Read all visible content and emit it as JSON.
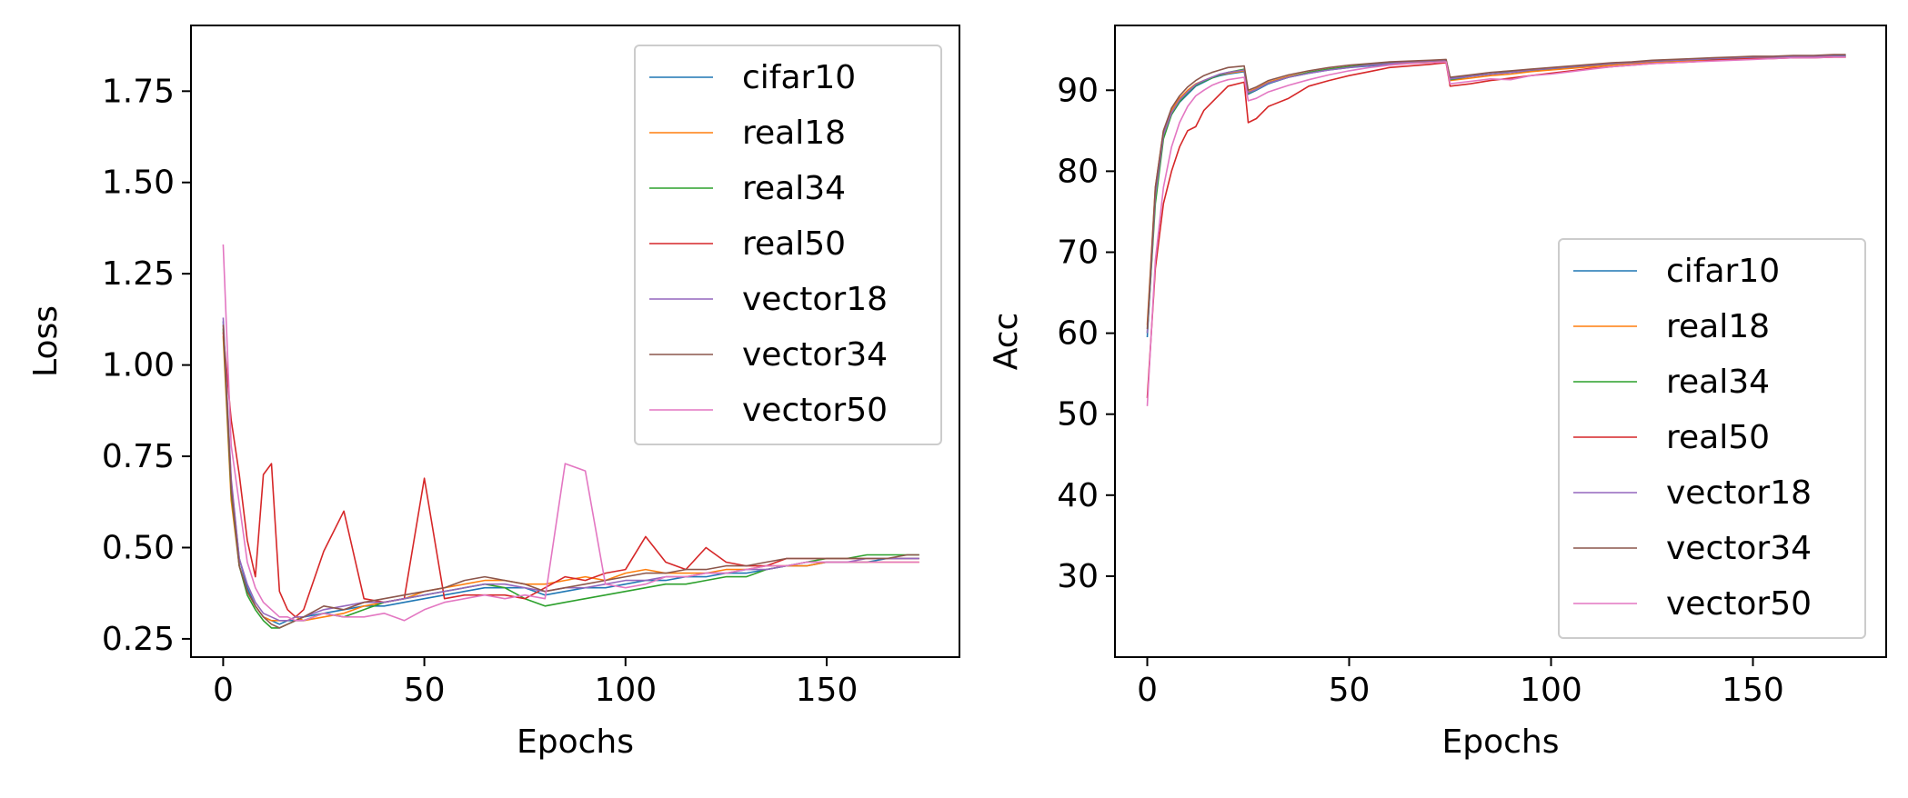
{
  "chart_data": [
    {
      "type": "line",
      "title": "",
      "xlabel": "Epochs",
      "ylabel": "Loss",
      "xlim": [
        -8,
        183
      ],
      "ylim": [
        0.2,
        1.93
      ],
      "xticks": [
        0,
        50,
        100,
        150
      ],
      "yticks": [
        0.25,
        0.5,
        0.75,
        1.0,
        1.25,
        1.5,
        1.75
      ],
      "ytick_labels": [
        "0.25",
        "0.50",
        "0.75",
        "1.00",
        "1.25",
        "1.50",
        "1.75"
      ],
      "legend": "upper-right",
      "grid": false,
      "x": [
        0,
        2,
        4,
        6,
        8,
        10,
        12,
        14,
        16,
        18,
        20,
        25,
        30,
        35,
        40,
        45,
        50,
        55,
        60,
        65,
        70,
        75,
        80,
        85,
        90,
        95,
        100,
        105,
        110,
        115,
        120,
        125,
        130,
        135,
        140,
        145,
        150,
        155,
        160,
        165,
        170,
        173
      ],
      "series": [
        {
          "name": "cifar10",
          "color": "#1f77b4",
          "values": [
            1.12,
            0.68,
            0.47,
            0.39,
            0.34,
            0.31,
            0.3,
            0.29,
            0.3,
            0.3,
            0.31,
            0.32,
            0.33,
            0.34,
            0.34,
            0.35,
            0.36,
            0.37,
            0.38,
            0.39,
            0.39,
            0.39,
            0.37,
            0.38,
            0.39,
            0.39,
            0.4,
            0.41,
            0.41,
            0.42,
            0.42,
            0.43,
            0.43,
            0.44,
            0.45,
            0.45,
            0.46,
            0.46,
            0.46,
            0.47,
            0.47,
            0.47
          ]
        },
        {
          "name": "real18",
          "color": "#ff7f0e",
          "values": [
            1.08,
            0.63,
            0.45,
            0.38,
            0.34,
            0.31,
            0.3,
            0.3,
            0.3,
            0.31,
            0.3,
            0.31,
            0.32,
            0.34,
            0.35,
            0.36,
            0.38,
            0.39,
            0.4,
            0.41,
            0.41,
            0.4,
            0.4,
            0.41,
            0.42,
            0.41,
            0.43,
            0.44,
            0.43,
            0.43,
            0.43,
            0.44,
            0.44,
            0.45,
            0.45,
            0.45,
            0.46,
            0.46,
            0.46,
            0.46,
            0.46,
            0.46
          ]
        },
        {
          "name": "real34",
          "color": "#2ca02c",
          "values": [
            1.1,
            0.65,
            0.45,
            0.37,
            0.33,
            0.3,
            0.28,
            0.28,
            0.29,
            0.3,
            0.3,
            0.32,
            0.31,
            0.33,
            0.35,
            0.36,
            0.37,
            0.38,
            0.39,
            0.4,
            0.39,
            0.36,
            0.34,
            0.35,
            0.36,
            0.37,
            0.38,
            0.39,
            0.4,
            0.4,
            0.41,
            0.42,
            0.42,
            0.44,
            0.45,
            0.46,
            0.47,
            0.47,
            0.48,
            0.48,
            0.48,
            0.48
          ]
        },
        {
          "name": "real50",
          "color": "#d62728",
          "values": [
            1.09,
            0.85,
            0.7,
            0.52,
            0.42,
            0.7,
            0.73,
            0.38,
            0.33,
            0.31,
            0.33,
            0.49,
            0.6,
            0.36,
            0.35,
            0.36,
            0.69,
            0.36,
            0.37,
            0.37,
            0.37,
            0.36,
            0.39,
            0.42,
            0.41,
            0.43,
            0.44,
            0.53,
            0.46,
            0.44,
            0.5,
            0.46,
            0.45,
            0.45,
            0.47,
            0.47,
            0.47,
            0.47,
            0.47,
            0.47,
            0.47,
            0.47
          ]
        },
        {
          "name": "vector18",
          "color": "#9467bd",
          "values": [
            1.13,
            0.69,
            0.47,
            0.4,
            0.35,
            0.32,
            0.31,
            0.3,
            0.3,
            0.31,
            0.31,
            0.33,
            0.34,
            0.35,
            0.35,
            0.36,
            0.37,
            0.38,
            0.39,
            0.4,
            0.4,
            0.39,
            0.38,
            0.39,
            0.39,
            0.4,
            0.41,
            0.41,
            0.42,
            0.42,
            0.43,
            0.43,
            0.44,
            0.44,
            0.45,
            0.46,
            0.46,
            0.46,
            0.47,
            0.47,
            0.47,
            0.47
          ]
        },
        {
          "name": "vector34",
          "color": "#8c564b",
          "values": [
            1.11,
            0.66,
            0.45,
            0.38,
            0.34,
            0.31,
            0.29,
            0.28,
            0.29,
            0.3,
            0.31,
            0.34,
            0.33,
            0.35,
            0.36,
            0.37,
            0.38,
            0.39,
            0.41,
            0.42,
            0.41,
            0.4,
            0.38,
            0.39,
            0.4,
            0.41,
            0.42,
            0.43,
            0.43,
            0.44,
            0.44,
            0.45,
            0.45,
            0.46,
            0.47,
            0.47,
            0.47,
            0.47,
            0.47,
            0.47,
            0.48,
            0.48
          ]
        },
        {
          "name": "vector50",
          "color": "#e377c2",
          "values": [
            1.33,
            0.78,
            0.62,
            0.46,
            0.39,
            0.35,
            0.33,
            0.31,
            0.31,
            0.3,
            0.3,
            0.32,
            0.31,
            0.31,
            0.32,
            0.3,
            0.33,
            0.35,
            0.36,
            0.37,
            0.36,
            0.37,
            0.36,
            0.73,
            0.71,
            0.4,
            0.39,
            0.4,
            0.42,
            0.42,
            0.43,
            0.43,
            0.44,
            0.45,
            0.45,
            0.46,
            0.46,
            0.46,
            0.46,
            0.46,
            0.46,
            0.46
          ]
        }
      ]
    },
    {
      "type": "line",
      "title": "",
      "xlabel": "Epochs",
      "ylabel": "Acc",
      "xlim": [
        -8,
        183
      ],
      "ylim": [
        20,
        98
      ],
      "xticks": [
        0,
        50,
        100,
        150
      ],
      "yticks": [
        30,
        40,
        50,
        60,
        70,
        80,
        90
      ],
      "ytick_labels": [
        "30",
        "40",
        "50",
        "60",
        "70",
        "80",
        "90"
      ],
      "legend": "lower-right",
      "grid": false,
      "x": [
        0,
        2,
        4,
        6,
        8,
        10,
        12,
        14,
        16,
        18,
        20,
        24,
        25,
        27,
        30,
        35,
        40,
        45,
        50,
        55,
        60,
        65,
        70,
        74,
        75,
        80,
        85,
        90,
        95,
        100,
        105,
        110,
        115,
        120,
        125,
        130,
        135,
        140,
        145,
        150,
        155,
        160,
        165,
        170,
        173
      ],
      "series": [
        {
          "name": "cifar10",
          "color": "#1f77b4",
          "values": [
            59.5,
            77,
            84.5,
            87,
            88.5,
            89.5,
            90.5,
            91,
            91.5,
            91.8,
            92,
            92.3,
            89.5,
            90,
            90.8,
            91.6,
            92.1,
            92.5,
            92.8,
            93,
            93.2,
            93.4,
            93.5,
            93.6,
            91.5,
            91.8,
            92,
            92.2,
            92.4,
            92.6,
            92.8,
            93,
            93.2,
            93.4,
            93.5,
            93.6,
            93.7,
            93.8,
            93.9,
            94,
            94,
            94.1,
            94.1,
            94.2,
            94.2
          ]
        },
        {
          "name": "real18",
          "color": "#ff7f0e",
          "values": [
            61,
            78,
            85,
            87.5,
            89,
            90,
            90.8,
            91.2,
            91.6,
            91.9,
            92.1,
            92.4,
            89.8,
            90.2,
            91,
            91.7,
            92.2,
            92.6,
            92.9,
            93.1,
            93.3,
            93.4,
            93.5,
            93.6,
            91.2,
            91.5,
            91.8,
            92,
            92.3,
            92.5,
            92.7,
            92.9,
            93.1,
            93.3,
            93.4,
            93.5,
            93.6,
            93.7,
            93.8,
            93.9,
            94,
            94,
            94.1,
            94.1,
            94.1
          ]
        },
        {
          "name": "real34",
          "color": "#2ca02c",
          "values": [
            60,
            76,
            84,
            87,
            88.6,
            89.7,
            90.6,
            91.1,
            91.5,
            91.9,
            92.2,
            92.6,
            89.6,
            90.1,
            90.9,
            91.6,
            92.2,
            92.6,
            92.9,
            93.2,
            93.4,
            93.5,
            93.6,
            93.7,
            91.3,
            91.7,
            92,
            92.3,
            92.5,
            92.7,
            92.9,
            93.1,
            93.3,
            93.4,
            93.6,
            93.7,
            93.8,
            93.9,
            94,
            94.1,
            94.1,
            94.2,
            94.2,
            94.3,
            94.3
          ]
        },
        {
          "name": "real50",
          "color": "#d62728",
          "values": [
            52,
            68,
            76,
            80,
            83,
            85,
            85.5,
            87.5,
            88.5,
            89.5,
            90.5,
            91,
            86,
            86.5,
            88,
            89,
            90.5,
            91.2,
            91.8,
            92.3,
            92.8,
            93,
            93.2,
            93.4,
            90.5,
            90.8,
            91.2,
            91.5,
            91.8,
            92.1,
            92.4,
            92.7,
            92.9,
            93.1,
            93.3,
            93.4,
            93.5,
            93.7,
            93.8,
            93.9,
            93.9,
            94,
            94,
            94.1,
            94.1
          ]
        },
        {
          "name": "vector18",
          "color": "#9467bd",
          "values": [
            60,
            77,
            84.5,
            87.2,
            88.8,
            89.8,
            90.7,
            91.2,
            91.6,
            92,
            92.2,
            92.5,
            89.7,
            90.1,
            90.9,
            91.6,
            92.1,
            92.5,
            92.8,
            93.1,
            93.3,
            93.5,
            93.6,
            93.7,
            91.4,
            91.7,
            92,
            92.2,
            92.5,
            92.7,
            92.9,
            93.1,
            93.3,
            93.4,
            93.6,
            93.7,
            93.8,
            93.9,
            94,
            94.1,
            94.1,
            94.2,
            94.2,
            94.3,
            94.3
          ]
        },
        {
          "name": "vector34",
          "color": "#8c564b",
          "values": [
            60.5,
            78,
            85,
            87.8,
            89.3,
            90.4,
            91.2,
            91.8,
            92.2,
            92.5,
            92.8,
            93,
            90,
            90.4,
            91.2,
            91.9,
            92.4,
            92.8,
            93.1,
            93.3,
            93.5,
            93.6,
            93.7,
            93.8,
            91.6,
            91.9,
            92.2,
            92.4,
            92.6,
            92.8,
            93,
            93.2,
            93.4,
            93.5,
            93.7,
            93.8,
            93.9,
            94,
            94.1,
            94.2,
            94.2,
            94.3,
            94.3,
            94.4,
            94.4
          ]
        },
        {
          "name": "vector50",
          "color": "#e377c2",
          "values": [
            51,
            69,
            78,
            83,
            86,
            88,
            89.3,
            90,
            90.6,
            91,
            91.3,
            91.6,
            88.7,
            89,
            89.8,
            90.6,
            91.3,
            91.9,
            92.4,
            92.8,
            93.1,
            93.3,
            93.4,
            93.5,
            90.8,
            91.1,
            91.4,
            91.3,
            91.8,
            92,
            92.3,
            92.6,
            92.9,
            93.1,
            93.3,
            93.4,
            93.5,
            93.6,
            93.7,
            93.8,
            93.9,
            94,
            94,
            94.1,
            94.1
          ]
        }
      ]
    }
  ]
}
